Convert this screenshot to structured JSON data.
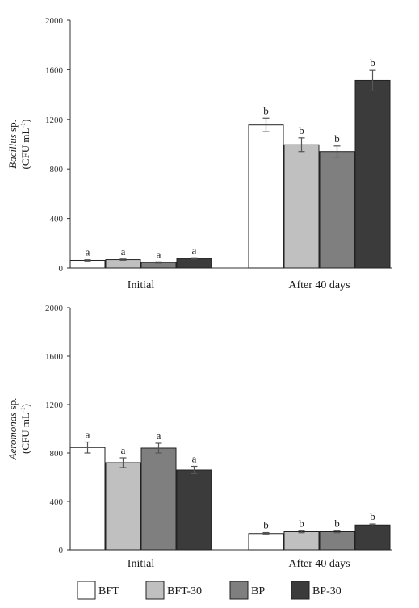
{
  "colors": {
    "BFT": "#ffffff",
    "BFT-30": "#c0c0c0",
    "BP": "#7f7f7f",
    "BP-30": "#3b3b3b"
  },
  "legend": [
    "BFT",
    "BFT-30",
    "BP",
    "BP-30"
  ],
  "chart_data": [
    {
      "type": "bar",
      "categories": [
        "Initial",
        "After 40 days"
      ],
      "ylabel_italic": "Bacillus",
      "ylabel_rest": " sp.",
      "ylabel_unit": "(CFU mL",
      "ylabel_sup": "-1",
      "ylabel_close": ")",
      "ylim": [
        0,
        2000
      ],
      "yticks": [
        0,
        400,
        800,
        1200,
        1600,
        2000
      ],
      "series": [
        {
          "name": "BFT",
          "values": [
            62,
            1155
          ],
          "errors": [
            5,
            55
          ],
          "letters": [
            "a",
            "b"
          ]
        },
        {
          "name": "BFT-30",
          "values": [
            68,
            995
          ],
          "errors": [
            5,
            55
          ],
          "letters": [
            "a",
            "b"
          ]
        },
        {
          "name": "BP",
          "values": [
            45,
            940
          ],
          "errors": [
            5,
            45
          ],
          "letters": [
            "a",
            "b"
          ]
        },
        {
          "name": "BP-30",
          "values": [
            78,
            1515
          ],
          "errors": [
            5,
            80
          ],
          "letters": [
            "a",
            "b"
          ]
        }
      ]
    },
    {
      "type": "bar",
      "categories": [
        "Initial",
        "After 40 days"
      ],
      "ylabel_italic": "Aeromonas",
      "ylabel_rest": " sp.",
      "ylabel_unit": "(CFU mL",
      "ylabel_sup": "-1",
      "ylabel_close": ")",
      "ylim": [
        0,
        2000
      ],
      "yticks": [
        0,
        400,
        800,
        1200,
        1600,
        2000
      ],
      "series": [
        {
          "name": "BFT",
          "values": [
            845,
            135
          ],
          "errors": [
            45,
            8
          ],
          "letters": [
            "a",
            "b"
          ]
        },
        {
          "name": "BFT-30",
          "values": [
            720,
            150
          ],
          "errors": [
            40,
            8
          ],
          "letters": [
            "a",
            "b"
          ]
        },
        {
          "name": "BP",
          "values": [
            840,
            150
          ],
          "errors": [
            40,
            8
          ],
          "letters": [
            "a",
            "b"
          ]
        },
        {
          "name": "BP-30",
          "values": [
            660,
            205
          ],
          "errors": [
            30,
            8
          ],
          "letters": [
            "a",
            "b"
          ]
        }
      ]
    }
  ]
}
